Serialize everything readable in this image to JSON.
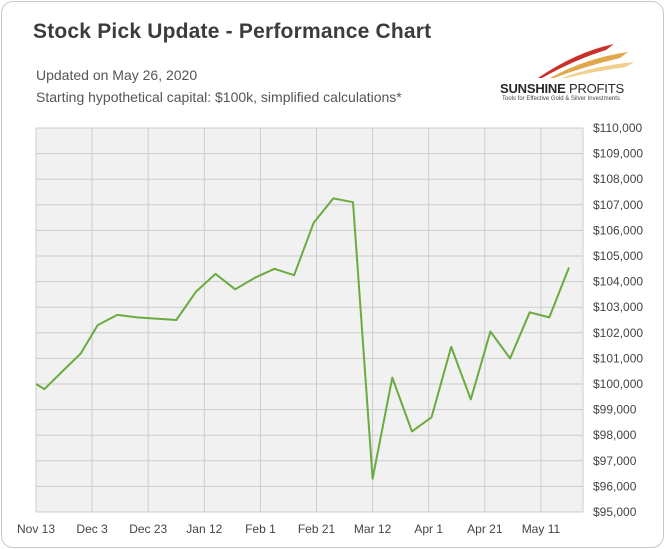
{
  "title": "Stock Pick Update - Performance Chart",
  "subtitle_lines": [
    "Updated on May 26, 2020",
    "Starting hypothetical capital: $100k, simplified calculations*"
  ],
  "logo": {
    "name_bold": "SUNSHINE",
    "name_thin": " PROFITS",
    "tagline": "Tools for Effective Gold & Silver Investments"
  },
  "colors": {
    "series": "#6aab3f",
    "plot_bg": "#f1f1f1",
    "grid": "#cccccc"
  },
  "chart_data": {
    "type": "line",
    "title": "Stock Pick Update - Performance Chart",
    "xlabel": "",
    "ylabel": "",
    "grid": true,
    "legend": "none",
    "x_tick_labels": [
      "Nov 13",
      "Dec 3",
      "Dec 23",
      "Jan 12",
      "Feb 1",
      "Feb 21",
      "Mar 12",
      "Apr 1",
      "Apr 21",
      "May 11"
    ],
    "y_tick_labels": [
      "$95,000",
      "$96,000",
      "$97,000",
      "$98,000",
      "$99,000",
      "$100,000",
      "$101,000",
      "$102,000",
      "$103,000",
      "$104,000",
      "$105,000",
      "$106,000",
      "$107,000",
      "$108,000",
      "$109,000",
      "$110,000"
    ],
    "ylim": [
      95000,
      110000
    ],
    "xlim": [
      "2019-11-13",
      "2020-05-26"
    ],
    "series": [
      {
        "values": [
          {
            "x": "2019-11-13",
            "y": 100000
          },
          {
            "x": "2019-11-16",
            "y": 99800
          },
          {
            "x": "2019-11-22",
            "y": 100450
          },
          {
            "x": "2019-11-29",
            "y": 101200
          },
          {
            "x": "2019-12-05",
            "y": 102300
          },
          {
            "x": "2019-12-12",
            "y": 102700
          },
          {
            "x": "2019-12-19",
            "y": 102600
          },
          {
            "x": "2020-01-02",
            "y": 102500
          },
          {
            "x": "2020-01-09",
            "y": 103600
          },
          {
            "x": "2020-01-16",
            "y": 104300
          },
          {
            "x": "2020-01-23",
            "y": 103700
          },
          {
            "x": "2020-01-30",
            "y": 104150
          },
          {
            "x": "2020-02-06",
            "y": 104500
          },
          {
            "x": "2020-02-13",
            "y": 104250
          },
          {
            "x": "2020-02-20",
            "y": 106300
          },
          {
            "x": "2020-02-27",
            "y": 107250
          },
          {
            "x": "2020-03-05",
            "y": 107100
          },
          {
            "x": "2020-03-12",
            "y": 96300
          },
          {
            "x": "2020-03-19",
            "y": 100250
          },
          {
            "x": "2020-03-26",
            "y": 98150
          },
          {
            "x": "2020-04-02",
            "y": 98700
          },
          {
            "x": "2020-04-09",
            "y": 101450
          },
          {
            "x": "2020-04-16",
            "y": 99400
          },
          {
            "x": "2020-04-23",
            "y": 102050
          },
          {
            "x": "2020-04-30",
            "y": 101000
          },
          {
            "x": "2020-05-07",
            "y": 102800
          },
          {
            "x": "2020-05-14",
            "y": 102600
          },
          {
            "x": "2020-05-21",
            "y": 104550
          }
        ]
      }
    ]
  }
}
